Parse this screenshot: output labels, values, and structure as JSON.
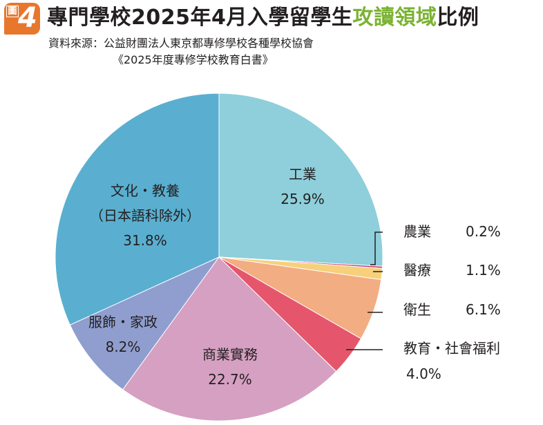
{
  "figure": {
    "badge_label": "圖",
    "badge_number": "4",
    "title_main": "專門學校2025年4月入學留學生",
    "title_highlight": "攻讀領域",
    "title_tail": "比例",
    "source_line1": "資料來源：公益財團法人東京都專修學校各種學校協會",
    "source_line2": "《2025年度專修学校教育白書》"
  },
  "colors": {
    "title_highlight": "#7ab232",
    "badge": "#e8772e"
  },
  "chart_data": {
    "type": "pie",
    "slices": [
      {
        "id": "engineering",
        "lines": [
          "工業"
        ],
        "percent_label": "25.9%",
        "value": 25.9,
        "color": "#8ecfdb",
        "label_mode": "inside"
      },
      {
        "id": "agriculture",
        "lines": [
          "農業"
        ],
        "percent_label": "0.2%",
        "value": 0.2,
        "color": "#c9447a",
        "label_mode": "outside"
      },
      {
        "id": "medical",
        "lines": [
          "醫療"
        ],
        "percent_label": "1.1%",
        "value": 1.1,
        "color": "#f6d07a",
        "label_mode": "outside"
      },
      {
        "id": "health",
        "lines": [
          "衛生"
        ],
        "percent_label": "6.1%",
        "value": 6.1,
        "color": "#f3ad82",
        "label_mode": "outside"
      },
      {
        "id": "education-welfare",
        "lines": [
          "教育・社會福利"
        ],
        "percent_label": "4.0%",
        "value": 4.0,
        "color": "#e5566c",
        "label_mode": "outside-wrap"
      },
      {
        "id": "business",
        "lines": [
          "商業實務"
        ],
        "percent_label": "22.7%",
        "value": 22.7,
        "color": "#d6a0c2",
        "label_mode": "inside"
      },
      {
        "id": "fashion-home",
        "lines": [
          "服飾・家政"
        ],
        "percent_label": "8.2%",
        "value": 8.2,
        "color": "#8f9ecf",
        "label_mode": "inside"
      },
      {
        "id": "culture-education",
        "lines": [
          "文化・教養",
          "（日本語科除外）"
        ],
        "percent_label": "31.8%",
        "value": 31.8,
        "color": "#5aafd0",
        "label_mode": "inside"
      }
    ]
  }
}
